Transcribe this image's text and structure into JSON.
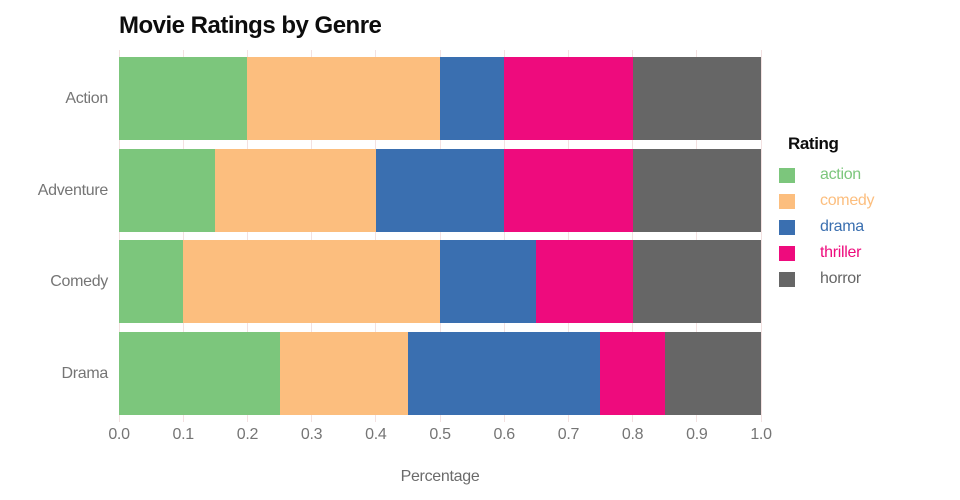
{
  "title": "Movie Ratings by Genre",
  "axis": {
    "x_label": "Percentage",
    "x_ticks": [
      "0.0",
      "0.1",
      "0.2",
      "0.3",
      "0.4",
      "0.5",
      "0.6",
      "0.7",
      "0.8",
      "0.9",
      "1.0"
    ],
    "y_categories": [
      "Action",
      "Adventure",
      "Comedy",
      "Drama"
    ]
  },
  "legend": {
    "title": "Rating",
    "items": [
      {
        "label": "action",
        "color": "#7cc67c"
      },
      {
        "label": "comedy",
        "color": "#fcbe7e"
      },
      {
        "label": "drama",
        "color": "#3a6fb0"
      },
      {
        "label": "thriller",
        "color": "#ee0b7d"
      },
      {
        "label": "horror",
        "color": "#666666"
      }
    ]
  },
  "colors": {
    "background": "#ffffff",
    "gridline": "#f3e1e1",
    "axis_text": "#757575",
    "title_text": "#0d0d0d"
  },
  "chart_data": {
    "type": "bar",
    "orientation": "horizontal",
    "stacked": true,
    "title": "Movie Ratings by Genre",
    "xlabel": "Percentage",
    "ylabel": "",
    "xlim": [
      0.0,
      1.0
    ],
    "x_tick_step": 0.1,
    "grid": true,
    "legend_title": "Rating",
    "legend_position": "right",
    "categories": [
      "Action",
      "Adventure",
      "Comedy",
      "Drama"
    ],
    "series": [
      {
        "name": "action",
        "color": "#7cc67c",
        "values": [
          0.2,
          0.15,
          0.1,
          0.25
        ]
      },
      {
        "name": "comedy",
        "color": "#fcbe7e",
        "values": [
          0.3,
          0.25,
          0.4,
          0.2
        ]
      },
      {
        "name": "drama",
        "color": "#3a6fb0",
        "values": [
          0.1,
          0.2,
          0.15,
          0.3
        ]
      },
      {
        "name": "thriller",
        "color": "#ee0b7d",
        "values": [
          0.2,
          0.2,
          0.15,
          0.1
        ]
      },
      {
        "name": "horror",
        "color": "#666666",
        "values": [
          0.2,
          0.2,
          0.2,
          0.15
        ]
      }
    ]
  }
}
